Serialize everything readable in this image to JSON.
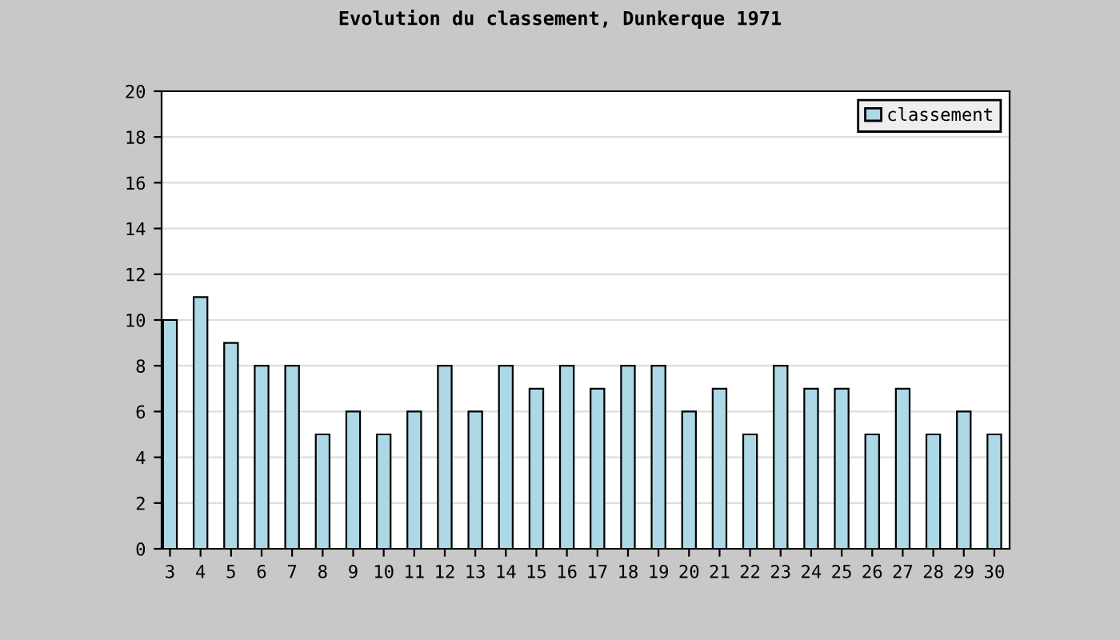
{
  "chart_data": {
    "type": "bar",
    "title": "Evolution du classement, Dunkerque 1971",
    "categories": [
      "3",
      "4",
      "5",
      "6",
      "7",
      "8",
      "9",
      "10",
      "11",
      "12",
      "13",
      "14",
      "15",
      "16",
      "17",
      "18",
      "19",
      "20",
      "21",
      "22",
      "23",
      "24",
      "25",
      "26",
      "27",
      "28",
      "29",
      "30"
    ],
    "series": [
      {
        "name": "classement",
        "color": "#add8e6",
        "values": [
          10,
          11,
          9,
          8,
          8,
          5,
          6,
          5,
          6,
          8,
          6,
          8,
          7,
          8,
          7,
          8,
          8,
          6,
          7,
          5,
          8,
          7,
          7,
          5,
          7,
          5,
          6,
          5
        ]
      }
    ],
    "ylim": [
      0,
      20
    ],
    "yticks": [
      0,
      2,
      4,
      6,
      8,
      10,
      12,
      14,
      16,
      18,
      20
    ],
    "grid": "y",
    "legend": "top right"
  }
}
